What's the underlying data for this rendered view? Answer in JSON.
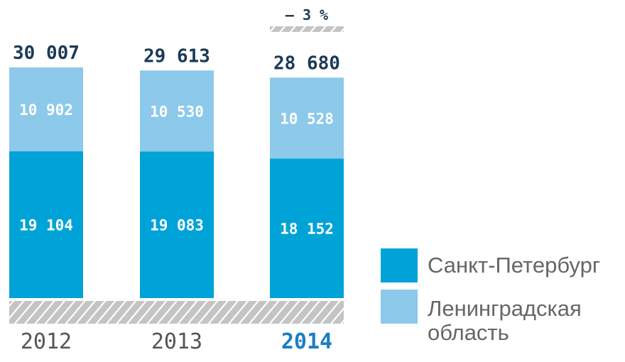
{
  "chart_data": {
    "type": "bar",
    "stacked": true,
    "categories": [
      "2012",
      "2013",
      "2014"
    ],
    "series": [
      {
        "name": "Санкт-Петербург",
        "values": [
          19104,
          19083,
          18152
        ],
        "color": "#00a3d7"
      },
      {
        "name": "Ленинградская область",
        "values": [
          10902,
          10530,
          10528
        ],
        "color": "#8cc9ea"
      }
    ],
    "totals": [
      "30 007",
      "29 613",
      "28 680"
    ],
    "segment_labels": [
      [
        "19 104",
        "19 083",
        "18 152"
      ],
      [
        "10 902",
        "10 530",
        "10 528"
      ]
    ],
    "highlight_category": "2014",
    "annotation": "– 3 %",
    "legend": {
      "position": "bottom-right",
      "items": [
        "Санкт-Петербург",
        "Ленинградская\nобласть"
      ]
    },
    "colors": {
      "total_label": "#1b3a57",
      "axis_label": "#555555",
      "highlight_label": "#1b7fc4",
      "hatch": "#c4c4c4"
    },
    "grid": false
  }
}
